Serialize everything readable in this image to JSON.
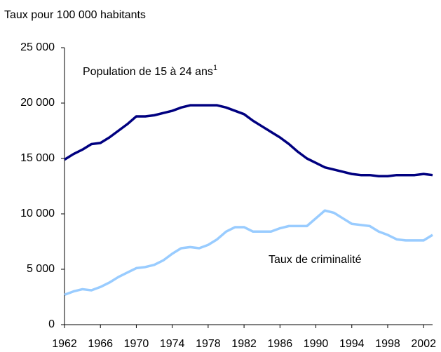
{
  "chart_data": {
    "type": "line",
    "y_label": "Taux pour 100 000 habitants",
    "x": [
      1962,
      1963,
      1964,
      1965,
      1966,
      1967,
      1968,
      1969,
      1970,
      1971,
      1972,
      1973,
      1974,
      1975,
      1976,
      1977,
      1978,
      1979,
      1980,
      1981,
      1982,
      1983,
      1984,
      1985,
      1986,
      1987,
      1988,
      1989,
      1990,
      1991,
      1992,
      1993,
      1994,
      1995,
      1996,
      1997,
      1998,
      1999,
      2000,
      2001,
      2002,
      2003
    ],
    "series": [
      {
        "name": "Population de 15 à 24 ans",
        "footnote_mark": "1",
        "color": "#000080",
        "values": [
          14900,
          15400,
          15800,
          16300,
          16400,
          16900,
          17500,
          18100,
          18800,
          18800,
          18900,
          19100,
          19300,
          19600,
          19800,
          19800,
          19800,
          19800,
          19600,
          19300,
          19000,
          18400,
          17900,
          17400,
          16900,
          16300,
          15600,
          15000,
          14600,
          14200,
          14000,
          13800,
          13600,
          13500,
          13500,
          13400,
          13400,
          13500,
          13500,
          13500,
          13600,
          13500
        ]
      },
      {
        "name": "Taux de criminalité",
        "color": "#99ccff",
        "values": [
          2700,
          3000,
          3200,
          3100,
          3400,
          3800,
          4300,
          4700,
          5100,
          5200,
          5400,
          5800,
          6400,
          6900,
          7000,
          6900,
          7200,
          7700,
          8400,
          8800,
          8800,
          8400,
          8400,
          8400,
          8700,
          8900,
          8900,
          8900,
          9600,
          10300,
          10100,
          9600,
          9100,
          9000,
          8900,
          8400,
          8100,
          7700,
          7600,
          7600,
          7600,
          8100
        ]
      }
    ],
    "xlim": [
      1962,
      2003
    ],
    "xticks": [
      1962,
      1966,
      1970,
      1974,
      1978,
      1982,
      1986,
      1990,
      1994,
      1998,
      2002
    ],
    "ylim": [
      0,
      25000
    ],
    "yticks": [
      0,
      {
        "value": 5000,
        "label": "5 000"
      },
      {
        "value": 10000,
        "label": "10 000"
      },
      {
        "value": 15000,
        "label": "15 000"
      },
      {
        "value": 20000,
        "label": "20 000"
      },
      {
        "value": 25000,
        "label": "25 000"
      }
    ]
  }
}
